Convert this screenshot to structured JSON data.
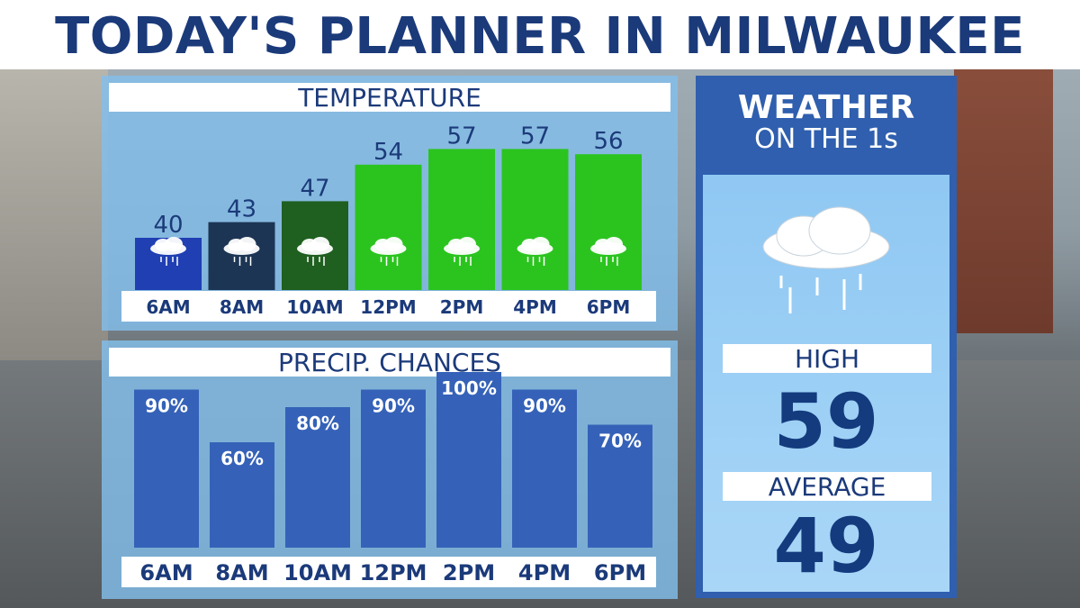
{
  "title": "TODAY'S PLANNER IN MILWAUKEE",
  "temperature": {
    "title": "TEMPERATURE",
    "icon": "cloud-rain-icon"
  },
  "precip": {
    "title": "PRECIP. CHANCES"
  },
  "brand": {
    "line1": "WEATHER",
    "line2": "ON THE 1s"
  },
  "forecast": {
    "icon": "cloud-rain-icon",
    "high_label": "HIGH",
    "high_value": "59",
    "average_label": "AVERAGE",
    "average_value": "49"
  },
  "colors": {
    "title_text": "#1b3a7a",
    "precip_bar": "#3562b8",
    "temp_bar_cold": "#1f3fb3",
    "temp_bar_cool": "#1d3554",
    "temp_bar_mild": "#1f5f1f",
    "temp_bar_warm": "#2bc41f"
  },
  "chart_data": [
    {
      "type": "bar",
      "title": "TEMPERATURE",
      "categories": [
        "6AM",
        "8AM",
        "10AM",
        "12PM",
        "2PM",
        "4PM",
        "6PM"
      ],
      "values": [
        40,
        43,
        47,
        54,
        57,
        57,
        56
      ],
      "data_labels": [
        "40",
        "43",
        "47",
        "54",
        "57",
        "57",
        "56"
      ]
    },
    {
      "type": "bar",
      "title": "PRECIP. CHANCES",
      "categories": [
        "6AM",
        "8AM",
        "10AM",
        "12PM",
        "2PM",
        "4PM",
        "6PM"
      ],
      "values": [
        90,
        60,
        80,
        90,
        100,
        90,
        70
      ],
      "data_labels": [
        "90%",
        "60%",
        "80%",
        "90%",
        "100%",
        "90%",
        "70%"
      ],
      "ylim": [
        0,
        100
      ]
    }
  ]
}
